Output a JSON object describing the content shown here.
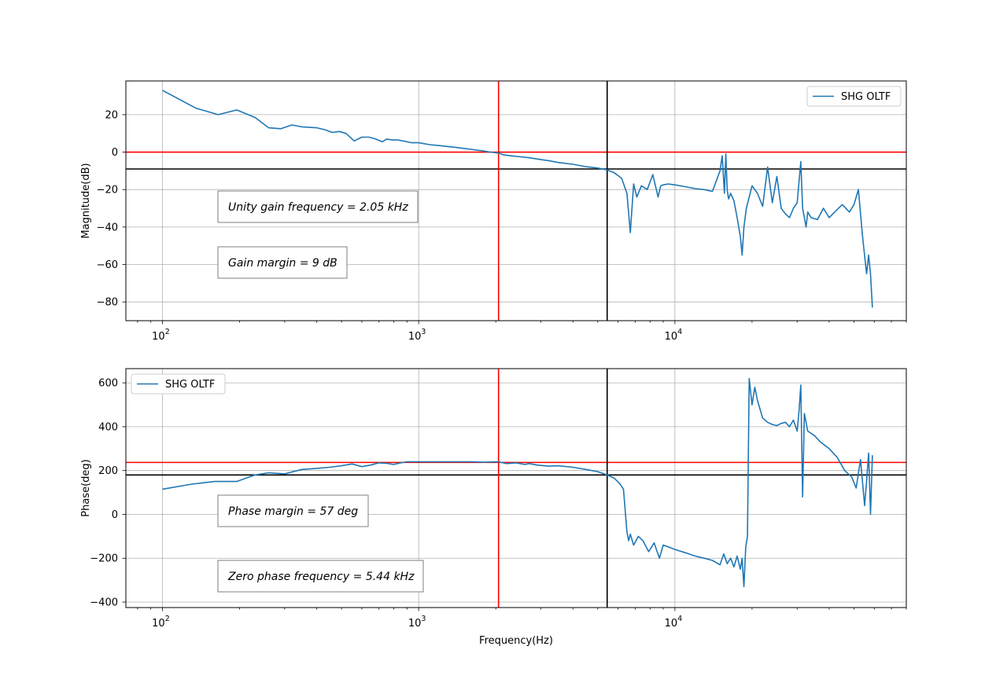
{
  "chart_data": [
    {
      "type": "line",
      "xlabel": "",
      "ylabel": "Magnitude(dB)",
      "x_scale": "log",
      "xlim": [
        72,
        80000
      ],
      "ylim": [
        -90,
        38
      ],
      "x_ticks": [
        {
          "value": 100,
          "mantissa": "10",
          "exp": "2"
        },
        {
          "value": 1000,
          "mantissa": "10",
          "exp": "3"
        },
        {
          "value": 10000,
          "mantissa": "10",
          "exp": "4"
        }
      ],
      "y_ticks": [
        20,
        0,
        -20,
        -40,
        -60,
        -80
      ],
      "y_tick_labels": [
        "20",
        "0",
        "−20",
        "−40",
        "−60",
        "−80"
      ],
      "grid": true,
      "legend_position": "top-right",
      "series": [
        {
          "name": "SHG OLTF",
          "color": "#1f77b4",
          "x": [
            100,
            135,
            165,
            195,
            230,
            260,
            290,
            320,
            350,
            400,
            430,
            460,
            490,
            520,
            560,
            600,
            640,
            680,
            720,
            750,
            790,
            830,
            880,
            940,
            1000,
            1050,
            1100,
            1200,
            1300,
            1400,
            1500,
            1600,
            1700,
            1800,
            1900,
            2050,
            2150,
            2300,
            2500,
            2700,
            3000,
            3200,
            3500,
            4000,
            4500,
            5000,
            5440,
            5800,
            6200,
            6500,
            6700,
            6900,
            7100,
            7400,
            7800,
            8200,
            8600,
            8800,
            9000,
            9400,
            10000,
            11000,
            12000,
            13000,
            14000,
            15000,
            15300,
            15600,
            15800,
            16000,
            16200,
            16500,
            17000,
            17500,
            18000,
            18300,
            18600,
            19000,
            20000,
            21000,
            22000,
            23000,
            24000,
            25000,
            26000,
            27000,
            28000,
            29000,
            30000,
            31000,
            31500,
            32000,
            32500,
            33000,
            34000,
            36000,
            38000,
            40000,
            42000,
            45000,
            48000,
            50000,
            52000,
            54000,
            56000,
            57000,
            58000,
            59000
          ],
          "y": [
            33,
            23.5,
            20,
            22.5,
            18.5,
            13,
            12.5,
            14.5,
            13.5,
            13,
            12,
            10.5,
            11,
            10,
            6,
            8,
            8,
            7,
            5.5,
            7,
            6.5,
            6.5,
            5.8,
            5,
            5,
            4.5,
            4,
            3.5,
            3,
            2.5,
            2,
            1.5,
            1,
            0.6,
            0,
            -0.5,
            -1.5,
            -2,
            -2.5,
            -3,
            -4,
            -4.5,
            -5.5,
            -6.5,
            -7.8,
            -8.5,
            -9.5,
            -11,
            -14,
            -22,
            -43,
            -17,
            -24,
            -18,
            -20,
            -12,
            -24,
            -18,
            -17.5,
            -17,
            -17.5,
            -18.5,
            -19.5,
            -20,
            -21,
            -10,
            -2,
            -22,
            -1,
            -20,
            -25,
            -22,
            -26,
            -35,
            -45,
            -55,
            -40,
            -30,
            -18,
            -22,
            -29,
            -8,
            -27,
            -13,
            -30,
            -33,
            -35,
            -30,
            -27,
            -5,
            -30,
            -35,
            -40,
            -32,
            -35,
            -36,
            -30,
            -35,
            -32,
            -28,
            -32,
            -28,
            -20,
            -45,
            -65,
            -55,
            -65,
            -83
          ]
        }
      ],
      "annotations": [
        "Unity gain frequency = 2.05 kHz",
        "Gain margin = 9 dB"
      ],
      "reference_lines": {
        "red_vertical_x": 2050,
        "black_vertical_x": 5440,
        "red_horizontal_y": 0,
        "black_horizontal_y": -9
      }
    },
    {
      "type": "line",
      "xlabel": "Frequency(Hz)",
      "ylabel": "Phase(deg)",
      "x_scale": "log",
      "xlim": [
        72,
        80000
      ],
      "ylim": [
        -425,
        665
      ],
      "x_ticks": [
        {
          "value": 100,
          "mantissa": "10",
          "exp": "2"
        },
        {
          "value": 1000,
          "mantissa": "10",
          "exp": "3"
        },
        {
          "value": 10000,
          "mantissa": "10",
          "exp": "4"
        }
      ],
      "y_ticks": [
        600,
        400,
        200,
        0,
        -200,
        -400
      ],
      "y_tick_labels": [
        "600",
        "400",
        "200",
        "0",
        "−200",
        "−400"
      ],
      "grid": true,
      "legend_position": "top-left",
      "series": [
        {
          "name": "SHG OLTF",
          "color": "#1f77b4",
          "x": [
            100,
            130,
            160,
            195,
            230,
            260,
            300,
            350,
            400,
            450,
            500,
            550,
            600,
            650,
            700,
            750,
            800,
            850,
            900,
            1000,
            1200,
            1400,
            1600,
            1800,
            2050,
            2200,
            2400,
            2600,
            2700,
            2900,
            3200,
            3500,
            4000,
            4500,
            5000,
            5440,
            5800,
            6100,
            6300,
            6500,
            6600,
            6700,
            6900,
            7200,
            7500,
            7900,
            8300,
            8700,
            9000,
            9500,
            10000,
            11000,
            12000,
            13000,
            14000,
            15000,
            15500,
            16000,
            16500,
            17000,
            17500,
            18000,
            18300,
            18600,
            18900,
            19200,
            19500,
            20000,
            20500,
            21000,
            21500,
            22000,
            23000,
            24000,
            25000,
            26000,
            27000,
            28000,
            29000,
            30000,
            30500,
            31000,
            31500,
            32000,
            32500,
            33000,
            35000,
            37000,
            40000,
            43000,
            46000,
            49000,
            51000,
            53000,
            55000,
            56000,
            57000,
            58000,
            59000
          ],
          "y": [
            115,
            138,
            150,
            150,
            180,
            190,
            185,
            205,
            210,
            215,
            222,
            230,
            218,
            225,
            235,
            233,
            228,
            235,
            240,
            240,
            240,
            240,
            240,
            238,
            240,
            232,
            235,
            228,
            232,
            225,
            220,
            222,
            215,
            205,
            195,
            180,
            165,
            140,
            115,
            -80,
            -120,
            -90,
            -140,
            -100,
            -120,
            -170,
            -130,
            -200,
            -140,
            -150,
            -160,
            -175,
            -190,
            -200,
            -210,
            -230,
            -180,
            -225,
            -200,
            -240,
            -190,
            -250,
            -200,
            -330,
            -150,
            -100,
            620,
            500,
            580,
            520,
            480,
            440,
            420,
            410,
            405,
            415,
            420,
            400,
            430,
            380,
            470,
            590,
            80,
            460,
            420,
            380,
            360,
            330,
            300,
            260,
            200,
            170,
            120,
            250,
            40,
            150,
            280,
            0,
            270
          ]
        }
      ],
      "annotations": [
        "Phase margin = 57 deg",
        "Zero phase frequency = 5.44 kHz"
      ],
      "reference_lines": {
        "red_vertical_x": 2050,
        "black_vertical_x": 5440,
        "red_horizontal_y": 237,
        "black_horizontal_y": 180
      }
    }
  ]
}
